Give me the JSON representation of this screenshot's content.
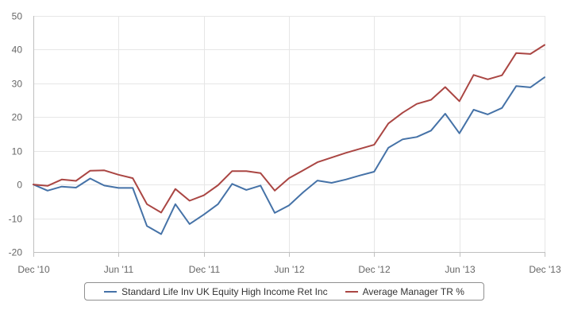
{
  "chart_data": {
    "type": "line",
    "x": [
      "Dec '10",
      "",
      "",
      "",
      "",
      "",
      "Jun '11",
      "",
      "",
      "",
      "",
      "",
      "Dec '11",
      "",
      "",
      "",
      "",
      "",
      "Jun '12",
      "",
      "",
      "",
      "",
      "",
      "Dec '12",
      "",
      "",
      "",
      "",
      "",
      "Jun '13",
      "",
      "",
      "",
      "",
      "",
      "Dec '13"
    ],
    "x_tick_labels": [
      "Dec '10",
      "Jun '11",
      "Dec '11",
      "Jun '12",
      "Dec '12",
      "Jun '13",
      "Dec '13"
    ],
    "ylim": [
      -20,
      50
    ],
    "y_ticks": [
      -20,
      -10,
      0,
      10,
      20,
      30,
      40,
      50
    ],
    "grid": true,
    "legend_position": "bottom",
    "series": [
      {
        "name": "Standard Life Inv UK Equity High Income Ret Inc",
        "color": "#4572a7",
        "values": [
          0,
          -1.8,
          -0.6,
          -0.9,
          1.8,
          -0.3,
          -1.0,
          -1.0,
          -12.3,
          -14.7,
          -5.8,
          -11.7,
          -8.9,
          -5.8,
          0.2,
          -1.6,
          -0.3,
          -8.4,
          -6.2,
          -2.3,
          1.2,
          0.5,
          1.5,
          2.7,
          3.8,
          10.9,
          13.4,
          14.1,
          16.0,
          21.0,
          15.2,
          22.2,
          20.8,
          22.7,
          29.2,
          28.8,
          31.8
        ]
      },
      {
        "name": "Average Manager TR %",
        "color": "#aa4643",
        "values": [
          0,
          -0.4,
          1.5,
          1.1,
          4.1,
          4.2,
          2.9,
          1.9,
          -5.8,
          -8.3,
          -1.3,
          -4.8,
          -3.2,
          -0.2,
          4.0,
          4.0,
          3.4,
          -1.8,
          1.9,
          4.2,
          6.6,
          8.0,
          9.4,
          10.6,
          11.8,
          18.1,
          21.3,
          23.9,
          25.1,
          28.9,
          24.7,
          32.5,
          31.2,
          32.4,
          39.0,
          38.7,
          41.4
        ]
      }
    ]
  }
}
